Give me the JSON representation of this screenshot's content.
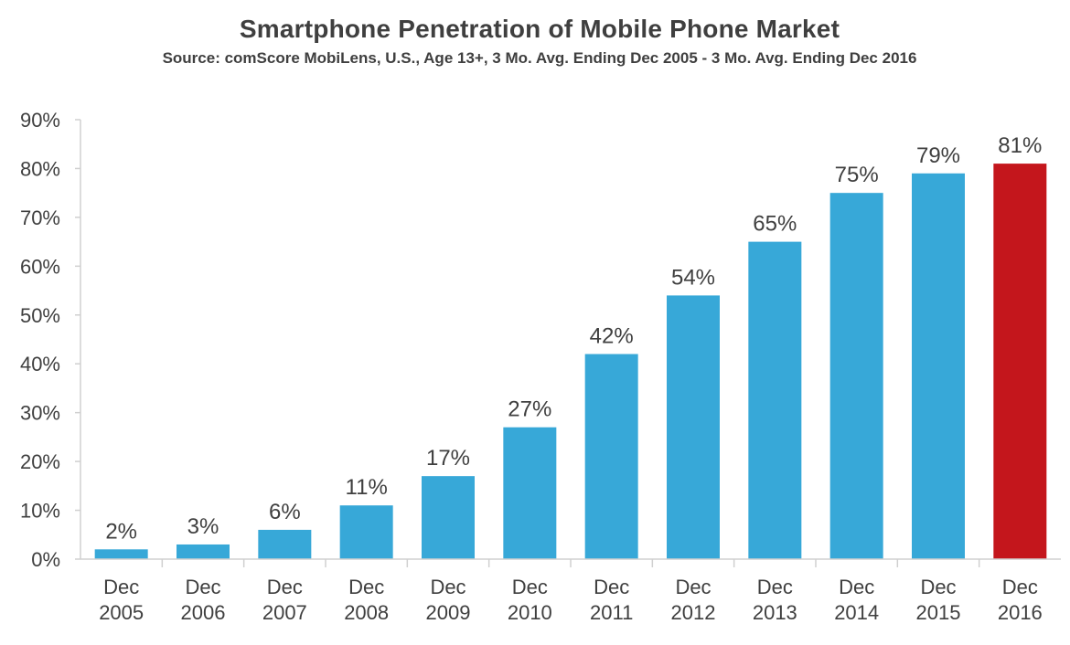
{
  "chart_data": {
    "type": "bar",
    "title": "Smartphone Penetration of Mobile Phone Market",
    "subtitle": "Source: comScore MobiLens, U.S., Age 13+, 3 Mo. Avg. Ending Dec 2005 - 3 Mo. Avg. Ending Dec 2016",
    "xlabel": "",
    "ylabel": "",
    "ylim": [
      0,
      90
    ],
    "ytick_step": 10,
    "ytick_labels": [
      "0%",
      "10%",
      "20%",
      "30%",
      "40%",
      "50%",
      "60%",
      "70%",
      "80%",
      "90%"
    ],
    "grid": false,
    "categories": [
      [
        "Dec",
        "2005"
      ],
      [
        "Dec",
        "2006"
      ],
      [
        "Dec",
        "2007"
      ],
      [
        "Dec",
        "2008"
      ],
      [
        "Dec",
        "2009"
      ],
      [
        "Dec",
        "2010"
      ],
      [
        "Dec",
        "2011"
      ],
      [
        "Dec",
        "2012"
      ],
      [
        "Dec",
        "2013"
      ],
      [
        "Dec",
        "2014"
      ],
      [
        "Dec",
        "2015"
      ],
      [
        "Dec",
        "2016"
      ]
    ],
    "values": [
      2,
      3,
      6,
      11,
      17,
      27,
      42,
      54,
      65,
      75,
      79,
      81
    ],
    "data_labels": [
      "2%",
      "3%",
      "6%",
      "11%",
      "17%",
      "27%",
      "42%",
      "54%",
      "65%",
      "75%",
      "79%",
      "81%"
    ],
    "colors": {
      "bar": "#37a8d8",
      "highlight_bar": "#c4161c",
      "axis": "#d0d0d0",
      "text": "#3f3f3f"
    },
    "highlight_index": 11
  }
}
